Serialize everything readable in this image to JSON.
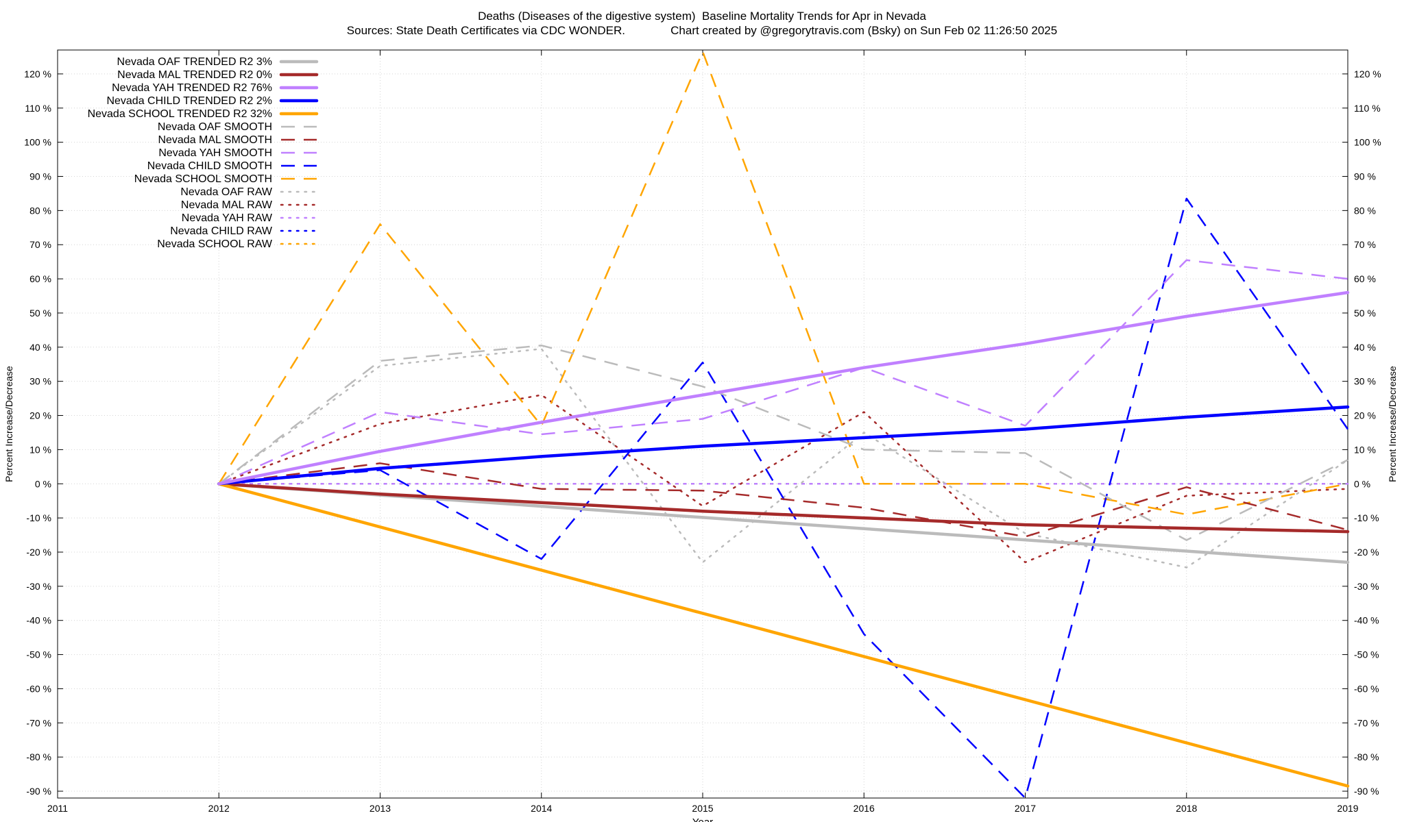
{
  "chart_data": {
    "type": "line",
    "title": "Deaths (Diseases of the digestive system)  Baseline Mortality Trends for Apr in Nevada",
    "subtitle": "Sources: State Death Certificates via CDC WONDER.              Chart created by @gregorytravis.com (Bsky) on Sun Feb 02 11:26:50 2025",
    "xlabel": "Year",
    "ylabel": "Percent Increase/Decrease",
    "ylabel_right": "Percent Increase/Decrease",
    "xlim": [
      2011,
      2019
    ],
    "ylim": [
      -92,
      127
    ],
    "x_ticks": [
      "2011",
      "2012",
      "2013",
      "2014",
      "2015",
      "2016",
      "2017",
      "2018",
      "2019"
    ],
    "y_ticks": [
      -90,
      -80,
      -70,
      -60,
      -50,
      -40,
      -30,
      -20,
      -10,
      0,
      10,
      20,
      30,
      40,
      50,
      60,
      70,
      80,
      90,
      100,
      110,
      120
    ],
    "y_tick_labels": [
      "-90 %",
      "-80 %",
      "-70 %",
      "-60 %",
      "-50 %",
      "-40 %",
      "-30 %",
      "-20 %",
      "-10 %",
      "0 %",
      "10 %",
      "20 %",
      "30 %",
      "40 %",
      "50 %",
      "60 %",
      "70 %",
      "80 %",
      "90 %",
      "100 %",
      "110 %",
      "120 %"
    ],
    "grid": true,
    "legend_position": "top-left",
    "series": [
      {
        "name": "Nevada OAF TRENDED R2   3%",
        "style": "solid",
        "color": "#bbbbbb",
        "x": [
          2012,
          2019
        ],
        "y": [
          0,
          -23
        ]
      },
      {
        "name": "Nevada MAL TRENDED R2   0%",
        "style": "solid",
        "color": "#a52a2a",
        "x": [
          2012,
          2013,
          2014,
          2015,
          2016,
          2017,
          2018,
          2019
        ],
        "y": [
          0,
          -3,
          -5.5,
          -8,
          -10,
          -12,
          -13,
          -14
        ]
      },
      {
        "name": "Nevada YAH TRENDED R2  76%",
        "style": "solid",
        "color": "#c080ff",
        "x": [
          2012,
          2013,
          2014,
          2015,
          2016,
          2017,
          2018,
          2019
        ],
        "y": [
          0,
          9.5,
          18,
          26,
          34,
          41,
          49,
          56
        ]
      },
      {
        "name": "Nevada CHILD TRENDED R2   2%",
        "style": "solid",
        "color": "#0000ff",
        "x": [
          2012,
          2013,
          2014,
          2015,
          2016,
          2017,
          2018,
          2019
        ],
        "y": [
          0,
          4.5,
          8,
          11,
          13.5,
          16,
          19.5,
          22.5
        ]
      },
      {
        "name": "Nevada SCHOOL TRENDED R2  32%",
        "style": "solid",
        "color": "#ffa500",
        "x": [
          2012,
          2019
        ],
        "y": [
          0,
          -88.5
        ]
      },
      {
        "name": "Nevada OAF SMOOTH",
        "style": "dashed",
        "color": "#bbbbbb",
        "x": [
          2012,
          2013,
          2014,
          2015,
          2016,
          2017,
          2018,
          2019
        ],
        "y": [
          0,
          36,
          40.5,
          28.5,
          10,
          9,
          -16.5,
          7
        ]
      },
      {
        "name": "Nevada MAL SMOOTH",
        "style": "dashed",
        "color": "#a52a2a",
        "x": [
          2012,
          2013,
          2014,
          2015,
          2016,
          2017,
          2018,
          2019
        ],
        "y": [
          0,
          6,
          -1.5,
          -2,
          -7,
          -15.5,
          -1,
          -13.5
        ]
      },
      {
        "name": "Nevada YAH SMOOTH",
        "style": "dashed",
        "color": "#c080ff",
        "x": [
          2012,
          2013,
          2014,
          2015,
          2016,
          2017,
          2018,
          2019
        ],
        "y": [
          0,
          21,
          14.5,
          19,
          34,
          17,
          65.5,
          60
        ]
      },
      {
        "name": "Nevada CHILD SMOOTH",
        "style": "dashed",
        "color": "#0000ff",
        "x": [
          2012,
          2013,
          2014,
          2015,
          2016,
          2017,
          2018,
          2019
        ],
        "y": [
          0,
          4,
          -22,
          35.5,
          -44,
          -92,
          83.5,
          16
        ]
      },
      {
        "name": "Nevada SCHOOL SMOOTH",
        "style": "dashed",
        "color": "#ffa500",
        "x": [
          2012,
          2013,
          2014,
          2015,
          2016,
          2017,
          2018,
          2019
        ],
        "y": [
          0,
          76,
          17,
          126.5,
          0,
          0,
          -9,
          0
        ]
      },
      {
        "name": "Nevada OAF RAW",
        "style": "dotted",
        "color": "#bbbbbb",
        "x": [
          2012,
          2013,
          2014,
          2015,
          2016,
          2017,
          2018,
          2019
        ],
        "y": [
          0,
          34.5,
          39.5,
          -23,
          15,
          -14.5,
          -24.5,
          7
        ]
      },
      {
        "name": "Nevada MAL RAW",
        "style": "dotted",
        "color": "#a52a2a",
        "x": [
          2012,
          2013,
          2014,
          2015,
          2016,
          2017,
          2018,
          2019
        ],
        "y": [
          0,
          17.5,
          26,
          -6.5,
          21,
          -23,
          -3.5,
          -1.5
        ]
      },
      {
        "name": "Nevada YAH RAW",
        "style": "dotted",
        "color": "#c080ff",
        "x": [
          2012,
          2013,
          2014,
          2015,
          2016,
          2017,
          2018,
          2019
        ],
        "y": [
          0,
          0,
          0,
          0,
          0,
          0,
          0,
          0
        ]
      },
      {
        "name": "Nevada CHILD RAW",
        "style": "dotted",
        "color": "#0000ff",
        "x": [
          2012,
          2013,
          2014,
          2015,
          2016,
          2017,
          2018,
          2019
        ],
        "y": [
          0,
          0,
          0,
          0,
          0,
          0,
          0,
          0
        ]
      },
      {
        "name": "Nevada SCHOOL RAW",
        "style": "dotted",
        "color": "#ffa500",
        "x": [
          2012,
          2013,
          2014,
          2015,
          2016,
          2017,
          2018,
          2019
        ],
        "y": [
          0,
          0,
          0,
          0,
          0,
          0,
          0,
          0
        ]
      }
    ]
  }
}
